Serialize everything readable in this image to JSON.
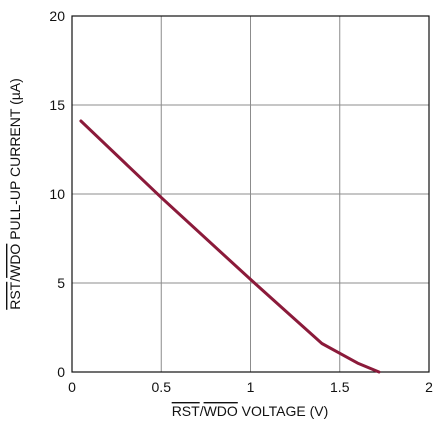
{
  "chart_data": {
    "type": "line",
    "xlabel": {
      "pre": "",
      "over1": "RST",
      "slash": "/",
      "over2": "WDO",
      "post": " VOLTAGE (V)"
    },
    "ylabel": {
      "pre": "",
      "over1": "RST",
      "slash": "/",
      "over2": "WDO",
      "post": " PULL-UP CURRENT (µA)"
    },
    "xlim": [
      0,
      2
    ],
    "ylim": [
      0,
      20
    ],
    "x_ticks": [
      0,
      0.5,
      1,
      1.5,
      2
    ],
    "x_tick_labels": [
      "0",
      "0.5",
      "1",
      "1.5",
      "2"
    ],
    "y_ticks": [
      0,
      5,
      10,
      15,
      20
    ],
    "y_tick_labels": [
      "0",
      "5",
      "10",
      "15",
      "20"
    ],
    "grid": true,
    "series": [
      {
        "color": "#8b1a3a",
        "points": [
          [
            0.05,
            14.1
          ],
          [
            0.5,
            9.8
          ],
          [
            1.0,
            5.2
          ],
          [
            1.2,
            3.4
          ],
          [
            1.4,
            1.6
          ],
          [
            1.5,
            1.05
          ],
          [
            1.6,
            0.5
          ],
          [
            1.72,
            0.0
          ]
        ]
      }
    ]
  }
}
